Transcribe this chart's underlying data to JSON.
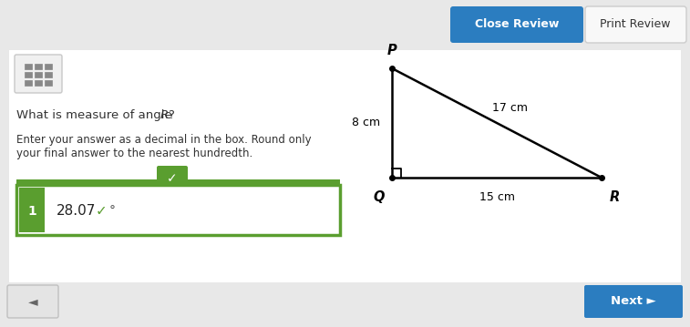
{
  "bg_color": "#e8e8e8",
  "panel_color": "#ffffff",
  "title_text": "What is measure of angle   R?",
  "subtitle_line1": "Enter your answer as a decimal in the box. Round only",
  "subtitle_line2": "your final answer to the nearest hundredth.",
  "answer_number": "28.07",
  "answer_label": "1",
  "degree_symbol": "°",
  "btn_close_text": "Close Review",
  "btn_print_text": "Print Review",
  "btn_next_text": "Next ►",
  "btn_close_color": "#2b7dc0",
  "btn_print_color": "#f5f5f5",
  "btn_next_color": "#2b7dc0",
  "check_green": "#5a9e2f",
  "check_green_light": "#6ab04c",
  "answer_box_border": "#5a9e2f",
  "label_1_bg": "#5a9e2f",
  "tri_P": [
    0.575,
    0.795
  ],
  "tri_Q": [
    0.575,
    0.395
  ],
  "tri_R": [
    0.93,
    0.395
  ],
  "dot_size": 5,
  "font_color_dark": "#333333",
  "font_color_mid": "#555555",
  "back_btn_bg": "#e0e0e0"
}
